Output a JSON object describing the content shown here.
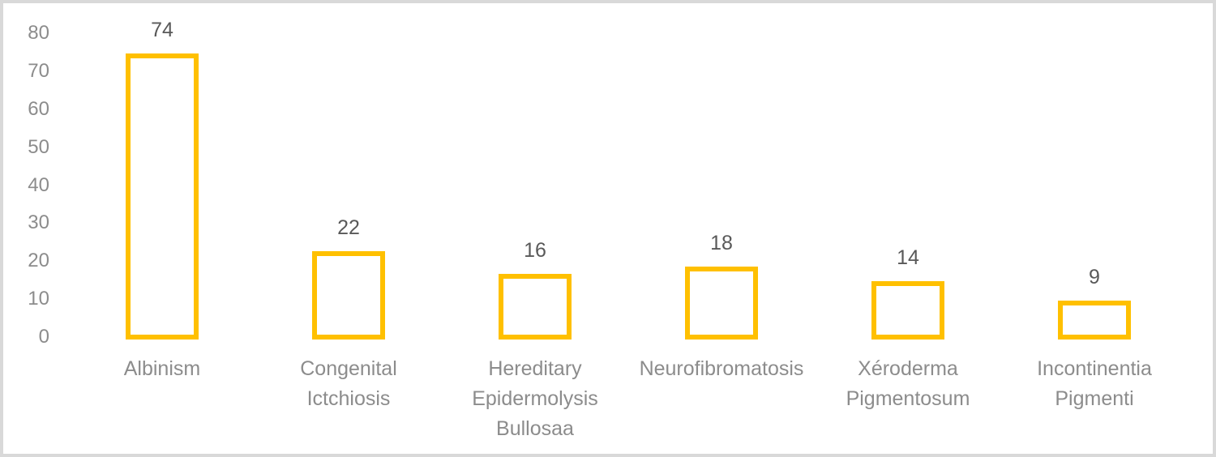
{
  "chart_data": {
    "type": "bar",
    "categories": [
      "Albinism",
      "Congenital Ictchiosis",
      "Hereditary Epidermolysis Bullosaa",
      "Neurofibromatosis",
      "Xéroderma Pigmentosum",
      "Incontinentia Pigmenti"
    ],
    "category_lines": [
      [
        "Albinism"
      ],
      [
        "Congenital",
        "Ictchiosis"
      ],
      [
        "Hereditary",
        "Epidermolysis",
        "Bullosaa"
      ],
      [
        "Neurofibromatosis"
      ],
      [
        "Xéroderma",
        "Pigmentosum"
      ],
      [
        "Incontinentia",
        "Pigmenti"
      ]
    ],
    "values": [
      74,
      22,
      16,
      18,
      14,
      9
    ],
    "y_ticks": [
      0,
      10,
      20,
      30,
      40,
      50,
      60,
      70,
      80
    ],
    "ylim": [
      0,
      80
    ],
    "grid": false,
    "legend": false,
    "bar_style": {
      "fill": "#FFFFFF",
      "stroke": "#FFC000"
    },
    "colors": {
      "axis_label": "#8C8C8C",
      "category_label": "#8C8C8C",
      "data_label": "#595959",
      "frame_border": "#D9D9D9",
      "background": "#FFFFFF"
    }
  }
}
